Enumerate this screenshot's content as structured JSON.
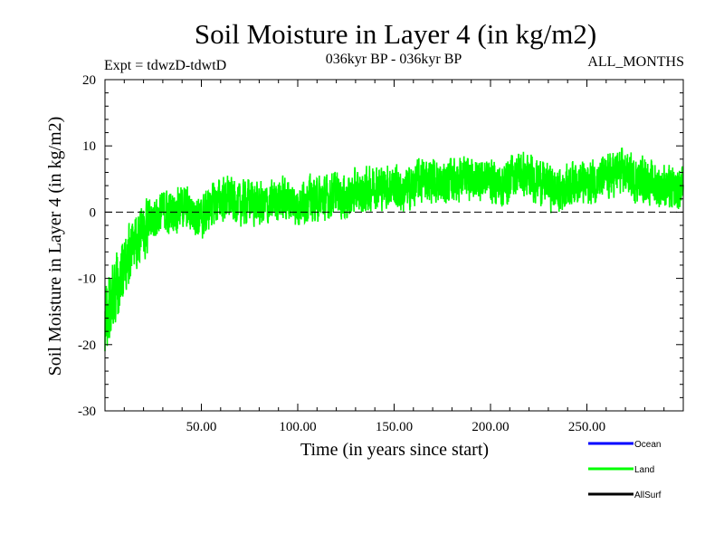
{
  "header": {
    "title": "Soil Moisture in Layer 4 (in kg/m2)",
    "expt": "Expt = tdwzD-tdwtD",
    "period": "036kyr BP - 036kyr BP",
    "months": "ALL_MONTHS"
  },
  "legend": {
    "items": [
      {
        "label": "Ocean",
        "color": "#0000ff"
      },
      {
        "label": "Land",
        "color": "#00ff00"
      },
      {
        "label": "AllSurf",
        "color": "#000000"
      }
    ]
  },
  "chart_data": {
    "type": "line",
    "title": "Soil Moisture in Layer 4 (in kg/m2)",
    "xlabel": "Time (in years since start)",
    "ylabel": "Soil Moisture in Layer 4 (in kg/m2)",
    "xlim": [
      0,
      300
    ],
    "ylim": [
      -30,
      20
    ],
    "x_ticks": [
      50,
      100,
      150,
      200,
      250
    ],
    "x_tick_labels": [
      "50.00",
      "100.00",
      "150.00",
      "200.00",
      "250.00"
    ],
    "y_ticks": [
      -30,
      -20,
      -10,
      0,
      10,
      20
    ],
    "y_tick_labels": [
      "-30",
      "-20",
      "-10",
      "0",
      "10",
      "20"
    ],
    "zero_line": true,
    "grid": false,
    "legend_position": "bottom-right",
    "series": [
      {
        "name": "Land",
        "color": "#00ff00",
        "x": [
          0,
          5,
          10,
          15,
          20,
          25,
          30,
          35,
          40,
          45,
          50,
          55,
          60,
          65,
          70,
          75,
          80,
          85,
          90,
          95,
          100,
          105,
          110,
          115,
          120,
          125,
          130,
          135,
          140,
          145,
          150,
          155,
          160,
          165,
          170,
          175,
          180,
          185,
          190,
          195,
          200,
          205,
          210,
          215,
          220,
          225,
          230,
          235,
          240,
          245,
          250,
          255,
          260,
          265,
          270,
          275,
          280,
          285,
          290,
          295,
          300
        ],
        "y": [
          -16,
          -12,
          -8,
          -5,
          -3,
          -1,
          0,
          0,
          1,
          0,
          -1,
          1,
          2,
          2,
          1,
          2,
          1,
          1,
          2,
          2,
          1,
          2,
          2,
          2,
          3,
          2,
          3,
          3,
          4,
          4,
          4,
          3,
          4,
          5,
          5,
          4,
          5,
          5,
          5,
          5,
          5,
          4,
          5,
          6,
          5,
          5,
          4,
          3,
          4,
          5,
          4,
          5,
          5,
          6,
          6,
          5,
          5,
          4,
          4,
          3,
          4
        ],
        "spread": [
          7,
          7,
          6,
          5,
          5,
          4,
          4,
          4,
          4,
          4,
          4,
          4,
          4,
          4,
          4,
          4,
          4,
          4,
          4,
          4,
          4,
          4,
          4,
          4,
          4,
          4,
          4,
          4,
          4,
          4,
          4,
          4,
          4,
          4,
          4,
          4,
          4,
          4,
          4,
          4,
          4,
          4,
          4,
          4,
          4,
          4,
          4,
          4,
          4,
          4,
          4,
          4,
          4,
          4,
          4,
          4,
          4,
          4,
          4,
          4,
          4
        ]
      }
    ]
  }
}
